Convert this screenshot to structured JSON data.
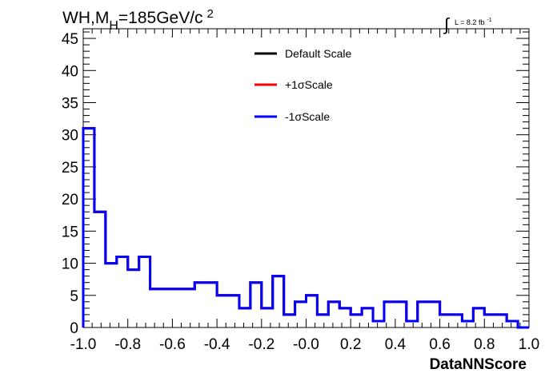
{
  "header": {
    "title_main": "WH,M",
    "title_sub": "H",
    "title_rest": "=185GeV/c",
    "title_sup": "2",
    "lumi_main": "L = 8.2 fb",
    "lumi_sup": "-1",
    "integral_symbol": "∫"
  },
  "colors": {
    "default": "#000000",
    "plus": "#ff0000",
    "minus": "#0000ff",
    "frame": "#000000",
    "background": "#ffffff"
  },
  "chart_data": {
    "type": "line",
    "style": "step-histogram",
    "xlabel": "DataNNScore",
    "ylabel": "",
    "xlim": [
      -1.0,
      1.0
    ],
    "ylim": [
      0,
      46.5
    ],
    "grid": false,
    "legend_position": "top-center",
    "x_tick_labels": [
      "-1.0",
      "-0.8",
      "-0.6",
      "-0.4",
      "-0.2",
      "-0.0",
      "0.2",
      "0.4",
      "0.6",
      "0.8",
      "1.0"
    ],
    "x_tick_values": [
      -1.0,
      -0.8,
      -0.6,
      -0.4,
      -0.2,
      0.0,
      0.2,
      0.4,
      0.6,
      0.8,
      1.0
    ],
    "y_tick_labels": [
      "0",
      "5",
      "10",
      "15",
      "20",
      "25",
      "30",
      "35",
      "40",
      "45"
    ],
    "y_tick_values": [
      0,
      5,
      10,
      15,
      20,
      25,
      30,
      35,
      40,
      45
    ],
    "bin_edges": [
      -1.0,
      -0.95,
      -0.9,
      -0.85,
      -0.8,
      -0.75,
      -0.7,
      -0.65,
      -0.6,
      -0.55,
      -0.5,
      -0.45,
      -0.4,
      -0.35,
      -0.3,
      -0.25,
      -0.2,
      -0.15,
      -0.1,
      -0.05,
      0.0,
      0.05,
      0.1,
      0.15,
      0.2,
      0.25,
      0.3,
      0.35,
      0.4,
      0.45,
      0.5,
      0.55,
      0.6,
      0.65,
      0.7,
      0.75,
      0.8,
      0.85,
      0.9,
      0.95,
      1.0
    ],
    "series": [
      {
        "name": "Default Scale",
        "color": "#000000",
        "values": [
          31,
          18,
          10,
          11,
          9,
          11,
          6,
          6,
          6,
          6,
          7,
          7,
          5,
          5,
          3,
          7,
          3,
          8,
          2,
          4,
          5,
          2,
          4,
          3,
          2,
          3,
          1,
          4,
          4,
          1,
          4,
          4,
          2,
          2,
          1,
          3,
          2,
          2,
          1,
          0
        ]
      },
      {
        "name": "+1σScale",
        "color": "#ff0000",
        "values": [
          31,
          18,
          10,
          11,
          9,
          11,
          6,
          6,
          6,
          6,
          7,
          7,
          5,
          5,
          3,
          7,
          3,
          8,
          2,
          4,
          5,
          2,
          4,
          3,
          2,
          3,
          1,
          4,
          4,
          1,
          4,
          4,
          2,
          2,
          1,
          3,
          2,
          2,
          1,
          0
        ]
      },
      {
        "name": "-1σScale",
        "color": "#0000ff",
        "values": [
          31,
          18,
          10,
          11,
          9,
          11,
          6,
          6,
          6,
          6,
          7,
          7,
          5,
          5,
          3,
          7,
          3,
          8,
          2,
          4,
          5,
          2,
          4,
          3,
          2,
          3,
          1,
          4,
          4,
          1,
          4,
          4,
          2,
          2,
          1,
          3,
          2,
          2,
          1,
          0
        ]
      }
    ]
  }
}
